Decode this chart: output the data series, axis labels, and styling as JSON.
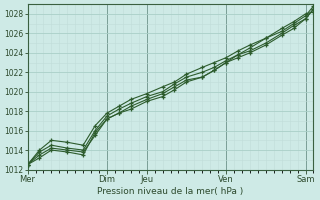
{
  "background_color": "#ceeae6",
  "grid_color": "#aacfc8",
  "grid_minor_color": "#c0ddd9",
  "line_color": "#2d5c2d",
  "marker_color": "#2d5c2d",
  "xlabel": "Pression niveau de la mer( hPa )",
  "ylim": [
    1012,
    1029
  ],
  "yticks": [
    1012,
    1014,
    1016,
    1018,
    1020,
    1022,
    1024,
    1026,
    1028
  ],
  "xtick_labels": [
    "Mer",
    "Dim",
    "Jeu",
    "Ven",
    "Sam"
  ],
  "xtick_positions": [
    0.0,
    2.0,
    3.0,
    5.0,
    7.0
  ],
  "day_vline_positions": [
    0.0,
    2.0,
    3.0,
    5.0,
    7.0
  ],
  "xlim": [
    0.0,
    7.2
  ],
  "lines": [
    {
      "x": [
        0.0,
        0.3,
        0.6,
        1.0,
        1.4,
        1.7,
        2.0,
        2.3,
        2.6,
        3.0,
        3.4,
        3.7,
        4.0,
        4.4,
        4.7,
        5.0,
        5.3,
        5.6,
        6.0,
        6.4,
        6.7,
        7.0,
        7.2
      ],
      "y": [
        1012.5,
        1013.5,
        1014.2,
        1014.0,
        1013.8,
        1015.5,
        1017.2,
        1017.8,
        1018.5,
        1019.2,
        1019.8,
        1020.5,
        1021.2,
        1021.5,
        1022.2,
        1023.0,
        1023.8,
        1024.5,
        1025.5,
        1026.5,
        1027.2,
        1028.0,
        1028.2
      ]
    },
    {
      "x": [
        0.0,
        0.3,
        0.6,
        1.0,
        1.4,
        1.7,
        2.0,
        2.3,
        2.6,
        3.0,
        3.4,
        3.7,
        4.0,
        4.4,
        4.7,
        5.0,
        5.3,
        5.6,
        6.0,
        6.4,
        6.7,
        7.0,
        7.2
      ],
      "y": [
        1012.5,
        1013.8,
        1014.5,
        1014.2,
        1014.0,
        1016.0,
        1017.5,
        1018.2,
        1018.8,
        1019.5,
        1020.0,
        1020.8,
        1021.5,
        1022.0,
        1022.5,
        1023.2,
        1023.8,
        1024.2,
        1025.0,
        1026.0,
        1026.8,
        1027.5,
        1028.5
      ]
    },
    {
      "x": [
        0.0,
        0.3,
        0.6,
        1.0,
        1.4,
        1.7,
        2.0,
        2.3,
        2.6,
        3.0,
        3.4,
        3.7,
        4.0,
        4.4,
        4.7,
        5.0,
        5.3,
        5.6,
        6.0,
        6.4,
        6.7,
        7.0,
        7.2
      ],
      "y": [
        1012.5,
        1014.0,
        1015.0,
        1014.8,
        1014.5,
        1016.5,
        1017.8,
        1018.5,
        1019.2,
        1019.8,
        1020.5,
        1021.0,
        1021.8,
        1022.5,
        1023.0,
        1023.5,
        1024.2,
        1024.8,
        1025.5,
        1026.2,
        1027.0,
        1027.8,
        1028.8
      ]
    },
    {
      "x": [
        0.0,
        0.3,
        0.6,
        1.0,
        1.4,
        1.7,
        2.0,
        2.3,
        2.6,
        3.0,
        3.4,
        3.7,
        4.0,
        4.4,
        4.7,
        5.0,
        5.3,
        5.6,
        6.0,
        6.4,
        6.7,
        7.0,
        7.2
      ],
      "y": [
        1012.5,
        1013.2,
        1014.0,
        1013.8,
        1013.5,
        1015.8,
        1017.2,
        1017.8,
        1018.2,
        1019.0,
        1019.5,
        1020.2,
        1021.0,
        1021.5,
        1022.2,
        1023.0,
        1023.5,
        1024.0,
        1024.8,
        1025.8,
        1026.5,
        1027.5,
        1028.5
      ]
    }
  ]
}
